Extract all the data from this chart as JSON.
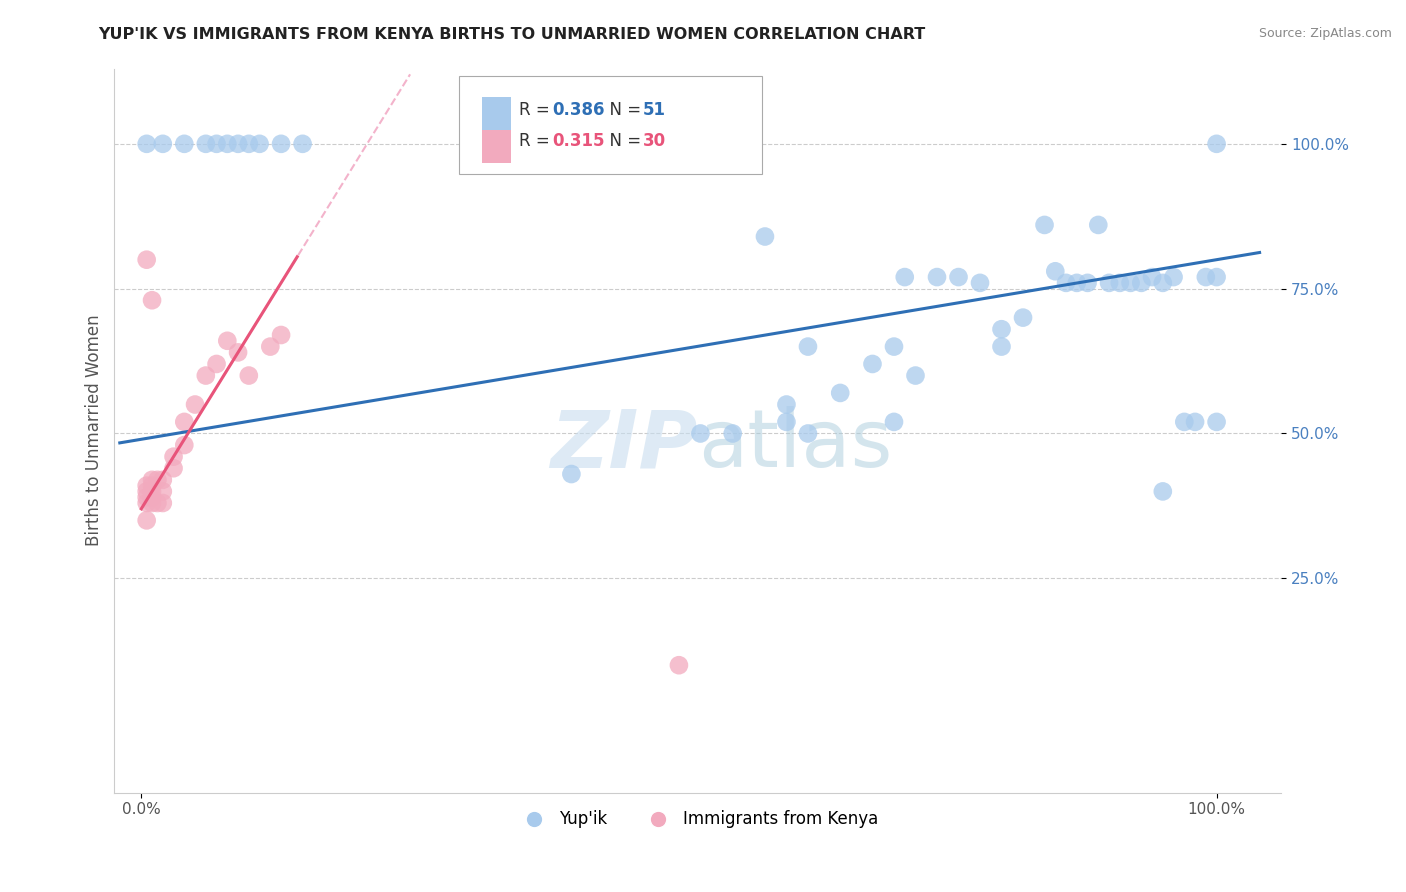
{
  "title": "YUP'IK VS IMMIGRANTS FROM KENYA BIRTHS TO UNMARRIED WOMEN CORRELATION CHART",
  "source": "Source: ZipAtlas.com",
  "ylabel": "Births to Unmarried Women",
  "r_blue": "0.386",
  "n_blue": "51",
  "r_pink": "0.315",
  "n_pink": "30",
  "color_blue": "#A8CAEC",
  "color_pink": "#F2AABE",
  "color_blue_line": "#2E6FB5",
  "color_pink_line": "#E8547A",
  "color_pink_dash": "#F0A0BE",
  "watermark_text": "ZIPatlas",
  "blue_x": [
    0.005,
    0.02,
    0.04,
    0.06,
    0.07,
    0.08,
    0.09,
    0.1,
    0.11,
    0.13,
    0.15,
    0.4,
    0.52,
    0.55,
    0.58,
    0.6,
    0.62,
    0.65,
    0.68,
    0.7,
    0.72,
    0.74,
    0.76,
    0.78,
    0.8,
    0.82,
    0.84,
    0.86,
    0.87,
    0.88,
    0.89,
    0.9,
    0.91,
    0.92,
    0.93,
    0.94,
    0.95,
    0.96,
    0.97,
    0.98,
    0.99,
    1.0,
    1.0,
    0.6,
    0.62,
    0.7,
    0.71,
    0.8,
    0.85,
    0.95,
    1.0
  ],
  "blue_y": [
    1.0,
    1.0,
    1.0,
    1.0,
    1.0,
    1.0,
    1.0,
    1.0,
    1.0,
    1.0,
    1.0,
    0.43,
    0.5,
    0.5,
    0.84,
    0.52,
    0.5,
    0.57,
    0.62,
    0.52,
    0.6,
    0.77,
    0.77,
    0.76,
    0.65,
    0.7,
    0.86,
    0.76,
    0.76,
    0.76,
    0.86,
    0.76,
    0.76,
    0.76,
    0.76,
    0.77,
    0.76,
    0.77,
    0.52,
    0.52,
    0.77,
    0.52,
    0.77,
    0.55,
    0.65,
    0.65,
    0.77,
    0.68,
    0.78,
    0.4,
    1.0
  ],
  "pink_x": [
    0.005,
    0.005,
    0.005,
    0.005,
    0.01,
    0.01,
    0.01,
    0.01,
    0.01,
    0.015,
    0.015,
    0.02,
    0.02,
    0.02,
    0.03,
    0.03,
    0.04,
    0.04,
    0.05,
    0.06,
    0.07,
    0.08,
    0.09,
    0.1,
    0.12,
    0.13,
    0.005,
    0.01,
    0.5,
    0.005
  ],
  "pink_y": [
    0.38,
    0.39,
    0.4,
    0.41,
    0.38,
    0.39,
    0.4,
    0.41,
    0.42,
    0.38,
    0.42,
    0.38,
    0.4,
    0.42,
    0.44,
    0.46,
    0.48,
    0.52,
    0.55,
    0.6,
    0.62,
    0.66,
    0.64,
    0.6,
    0.65,
    0.67,
    0.8,
    0.73,
    0.1,
    0.35
  ]
}
